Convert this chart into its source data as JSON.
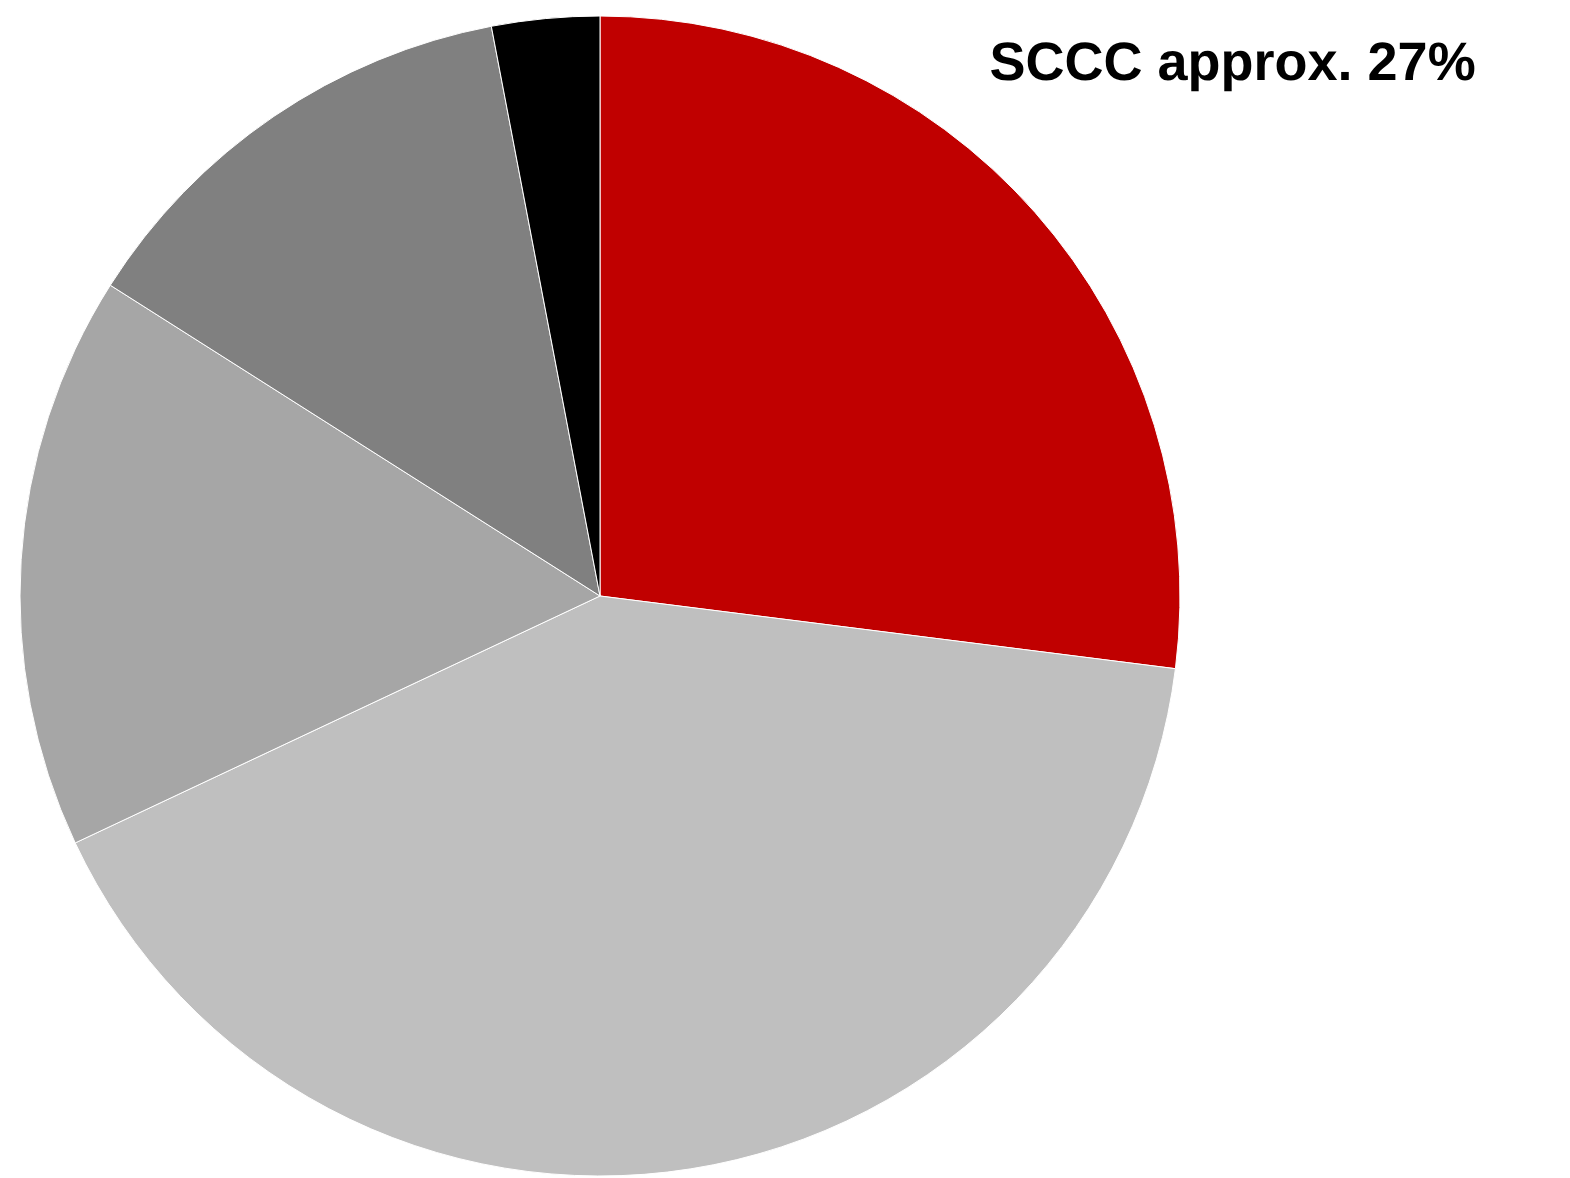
{
  "chart_data": {
    "type": "pie",
    "categories": [
      "SCCC",
      null,
      null,
      null,
      null
    ],
    "values": [
      27,
      41,
      16,
      13,
      3
    ],
    "colors": [
      "#c00000",
      "#bfbfbf",
      "#a6a6a6",
      "#808080",
      "#000000"
    ],
    "value_labels": [
      "approx. 27%",
      null,
      null,
      null,
      null
    ]
  }
}
